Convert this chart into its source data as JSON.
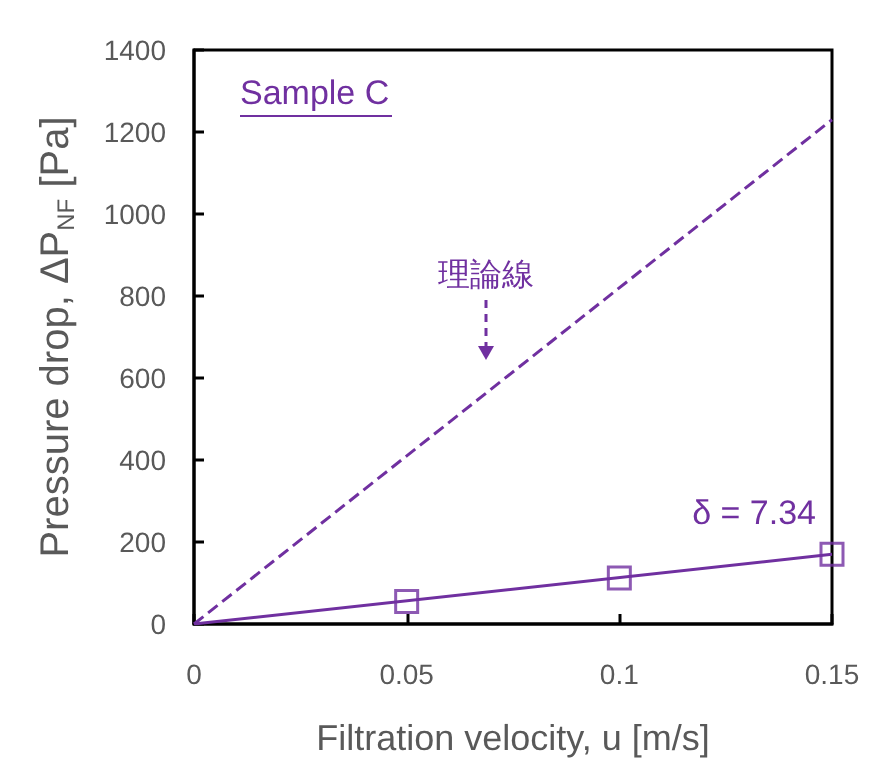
{
  "chart_data": {
    "type": "line",
    "xlabel": "Filtration velocity, u [m/s]",
    "ylabel": "Pressure drop, ΔP$_{NF}$ [Pa]",
    "xlim": [
      0,
      0.15
    ],
    "xticks": [
      0,
      0.05,
      0.1,
      0.15
    ],
    "ylim": [
      0,
      1400
    ],
    "yticks": [
      0,
      200,
      400,
      600,
      800,
      1000,
      1200,
      1400
    ],
    "grid": false,
    "series": [
      {
        "color": "#7030a0",
        "marker": "none",
        "line_style": "dashed",
        "x": [
          0,
          0.15
        ],
        "values": [
          0,
          1230
        ]
      },
      {
        "color": "#7030a0",
        "marker": "none",
        "line_style": "solid",
        "x": [
          0,
          0.15
        ],
        "values": [
          0,
          170
        ]
      },
      {
        "type": "scatter",
        "color": "#7030a0",
        "marker": "square",
        "x": [
          0.05,
          0.1,
          0.15
        ],
        "values": [
          55,
          112,
          170
        ]
      }
    ],
    "annotations": [
      "Sample C",
      "理論線",
      {
        "text": "δ = 7.34",
        "x": 0.15,
        "y": 170
      }
    ]
  }
}
